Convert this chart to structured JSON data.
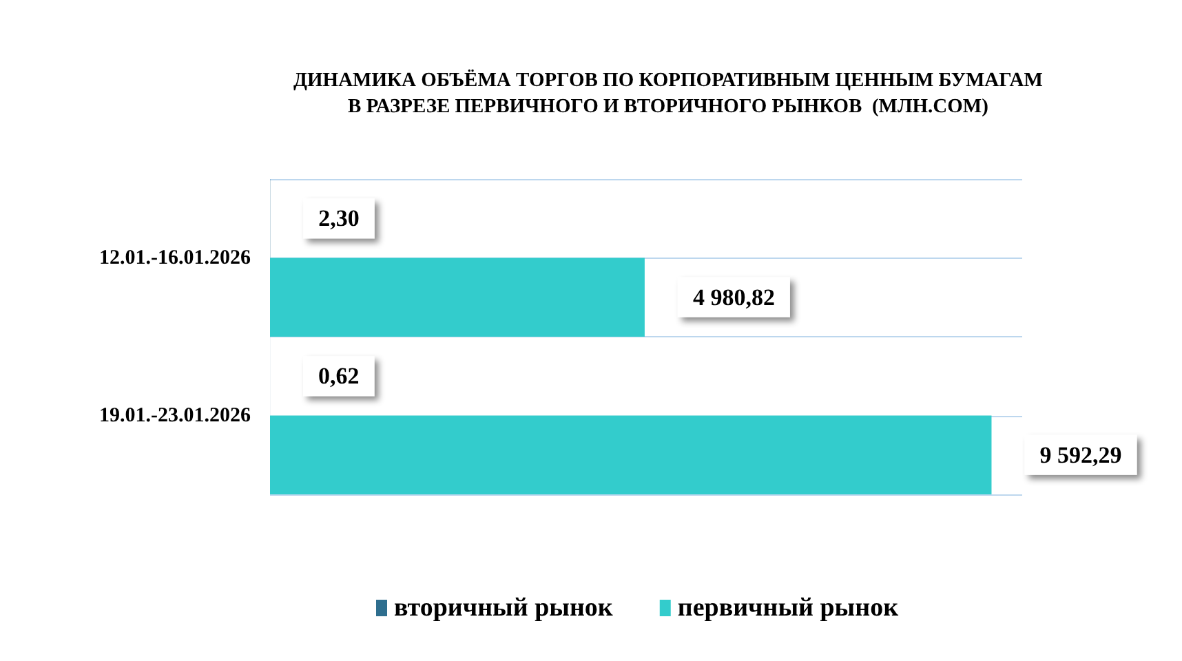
{
  "chart_data": {
    "type": "bar",
    "orientation": "horizontal",
    "title": "ДИНАМИКА ОБЪЁМА ТОРГОВ ПО КОРПОРАТИВНЫМ ЦЕННЫМ БУМАГАМ\nВ РАЗРЕЗЕ ПЕРВИЧНОГО И ВТОРИЧНОГО РЫНКОВ  (МЛН.СОМ)",
    "categories": [
      "12.01.-16.01.2026",
      "19.01.-23.01.2026"
    ],
    "series": [
      {
        "name": "вторичный рынок",
        "color": "#2e6e8e",
        "values": [
          2.3,
          0.62
        ],
        "value_labels": [
          "2,30",
          "0,62"
        ]
      },
      {
        "name": "первичный рынок",
        "color": "#33cccc",
        "values": [
          4980.82,
          9592.29
        ],
        "value_labels": [
          "4 980,82",
          "9 592,29"
        ]
      }
    ],
    "grid": "y",
    "legend": "bottom",
    "tick_labels": "y"
  }
}
